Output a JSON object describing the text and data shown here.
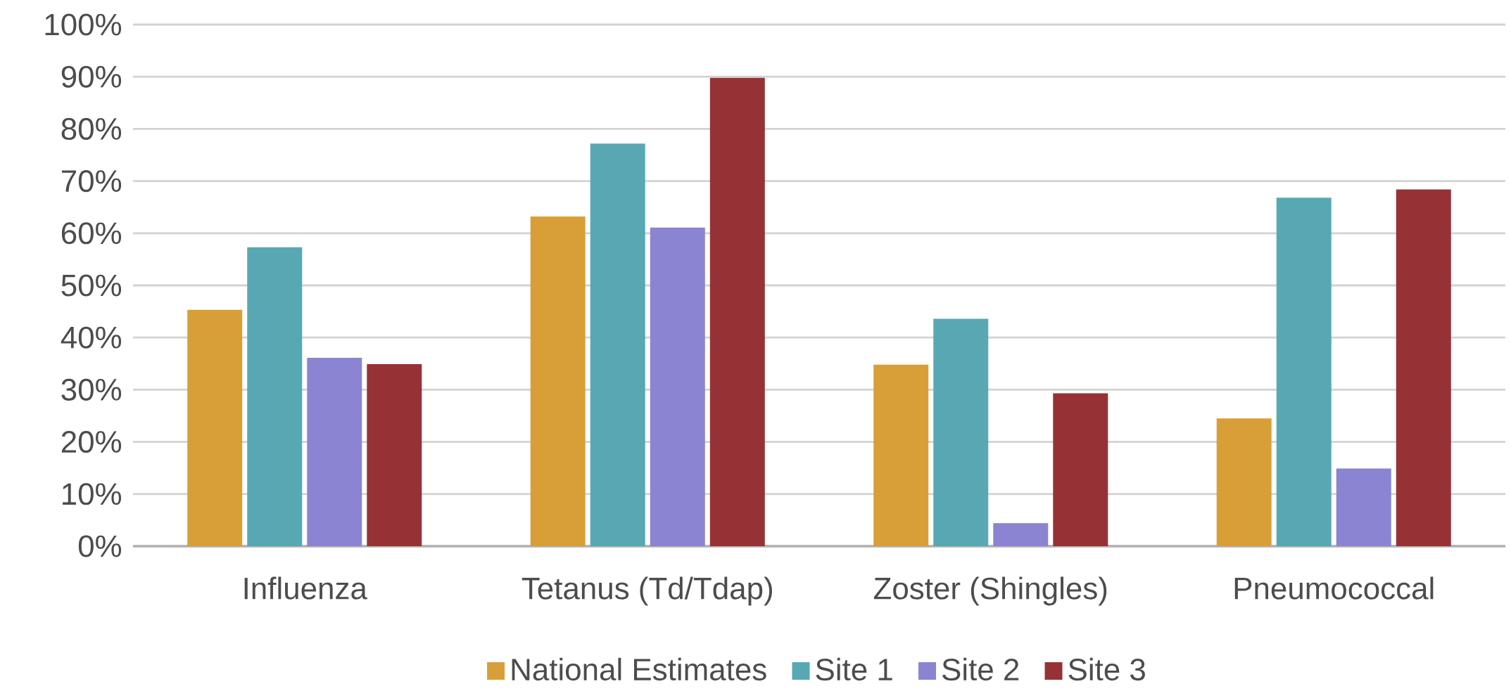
{
  "chart_data": {
    "type": "bar",
    "categories": [
      "Influenza",
      "Tetanus (Td/Tdap)",
      "Zoster (Shingles)",
      "Pneumococcal"
    ],
    "series": [
      {
        "name": "National Estimates",
        "color": "#d89f38",
        "values": [
          45.3,
          63.2,
          34.8,
          24.5
        ]
      },
      {
        "name": "Site 1",
        "color": "#58a8b4",
        "values": [
          57.3,
          77.2,
          43.6,
          66.8
        ]
      },
      {
        "name": "Site 2",
        "color": "#8b84d3",
        "values": [
          36.1,
          61.1,
          4.4,
          14.9
        ]
      },
      {
        "name": "Site 3",
        "color": "#963236",
        "values": [
          34.9,
          89.8,
          29.3,
          68.4
        ]
      }
    ],
    "ylim": [
      0,
      100
    ],
    "yticks": [
      {
        "value": 0,
        "label": "0%"
      },
      {
        "value": 10,
        "label": "10%"
      },
      {
        "value": 20,
        "label": "20%"
      },
      {
        "value": 30,
        "label": "30%"
      },
      {
        "value": 40,
        "label": "40%"
      },
      {
        "value": 50,
        "label": "50%"
      },
      {
        "value": 60,
        "label": "60%"
      },
      {
        "value": 70,
        "label": "70%"
      },
      {
        "value": 80,
        "label": "80%"
      },
      {
        "value": 90,
        "label": "90%"
      },
      {
        "value": 100,
        "label": "100%"
      }
    ],
    "grid": "y",
    "legend": "bottom"
  }
}
